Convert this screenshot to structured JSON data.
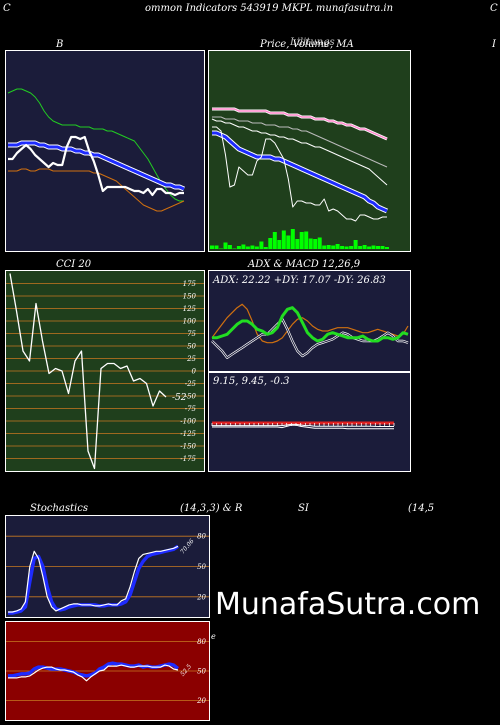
{
  "header": {
    "corner_left": "C",
    "title": "ommon  Indicators 543919 MKPL  munafasutra.in",
    "corner_right": "C"
  },
  "panels": {
    "bollinger": {
      "title": "B"
    },
    "price": {
      "title": "Price,  Volume,  MA",
      "overlap_text": "Lilitungs"
    },
    "right_edge": {
      "title": "I"
    },
    "cci": {
      "title": "CCI 20",
      "last_value": "-52",
      "ticks": [
        "175",
        "150",
        "125",
        "100",
        "75",
        "50",
        "25",
        "0",
        "-25",
        "-50",
        "-75",
        "-100",
        "-125",
        "-150",
        "-175"
      ]
    },
    "adx": {
      "title": "ADX  & MACD 12,26,9",
      "adx_text": "ADX: 22.22  +DY: 17.07 -DY: 26.83",
      "macd_text": "9.15,  9.45,  -0.3"
    },
    "stoch": {
      "title_left": "Stochastics",
      "title_right": "(14,3,3) & R",
      "ticks": [
        "80",
        "50",
        "20"
      ],
      "last_value": "70.06"
    },
    "rsi": {
      "title_mid": "SI",
      "title_right": "(14,5",
      "ticks": [
        "80",
        "50",
        "20"
      ],
      "last_value": "52.5",
      "side_mark": "e"
    }
  },
  "watermark": "MunafaSutra.com",
  "colors": {
    "panel_navy": "#1b1c3a",
    "panel_green": "#1f3f1c",
    "panel_red": "#8b0000",
    "grid_orange": "#c87820",
    "blue": "#1e2bff",
    "green_line": "#22dd22",
    "orange_line": "#d07010",
    "volume_green": "#00ff00",
    "pink": "#ff88cc"
  },
  "chart_data": [
    {
      "type": "line",
      "name": "bollinger",
      "x": [
        1,
        2,
        3,
        4,
        5,
        6,
        7,
        8,
        9,
        10,
        11,
        12,
        13,
        14,
        15,
        16,
        17,
        18,
        19,
        20,
        21,
        22,
        23,
        24,
        25,
        26,
        27,
        28,
        29,
        30,
        31,
        32,
        33,
        34,
        35,
        36,
        37,
        38,
        39,
        40
      ],
      "series": [
        {
          "key": "upper",
          "values": [
            79,
            80,
            81,
            81,
            80,
            79,
            77,
            74,
            70,
            67,
            65,
            64,
            63,
            63,
            63,
            63,
            62,
            62,
            62,
            61,
            61,
            61,
            60,
            60,
            59,
            58,
            57,
            56,
            55,
            52,
            49,
            46,
            42,
            38,
            34,
            31,
            28,
            26,
            25,
            25
          ]
        },
        {
          "key": "middle",
          "values": [
            53,
            53,
            53,
            54,
            54,
            54,
            54,
            53,
            53,
            52,
            52,
            52,
            51,
            51,
            51,
            50,
            50,
            49,
            49,
            48,
            48,
            47,
            46,
            45,
            44,
            43,
            42,
            41,
            40,
            39,
            38,
            37,
            36,
            35,
            34,
            33,
            33,
            32,
            32,
            31
          ]
        },
        {
          "key": "lower",
          "values": [
            40,
            40,
            40,
            41,
            41,
            40,
            40,
            41,
            41,
            41,
            40,
            40,
            40,
            40,
            40,
            40,
            40,
            40,
            40,
            39,
            39,
            38,
            37,
            36,
            35,
            33,
            31,
            29,
            27,
            25,
            23,
            22,
            21,
            20,
            20,
            21,
            22,
            23,
            24,
            25
          ]
        },
        {
          "key": "price",
          "values": [
            46,
            46,
            49,
            51,
            53,
            51,
            48,
            46,
            44,
            42,
            44,
            43,
            43,
            52,
            57,
            57,
            56,
            57,
            50,
            45,
            38,
            30,
            32,
            32,
            32,
            32,
            32,
            31,
            30,
            30,
            29,
            31,
            28,
            31,
            31,
            29,
            29,
            28,
            29,
            29
          ]
        }
      ]
    },
    {
      "type": "line",
      "name": "price_ma",
      "x": [
        1,
        2,
        3,
        4,
        5,
        6,
        7,
        8,
        9,
        10,
        11,
        12,
        13,
        14,
        15,
        16,
        17,
        18,
        19,
        20,
        21,
        22,
        23,
        24,
        25,
        26,
        27,
        28,
        29,
        30,
        31,
        32,
        33,
        34,
        35,
        36,
        37,
        38,
        39,
        40
      ],
      "series": [
        {
          "key": "price",
          "values": [
            62,
            62,
            60,
            48,
            32,
            33,
            42,
            40,
            38,
            38,
            45,
            47,
            56,
            56,
            54,
            50,
            46,
            36,
            22,
            25,
            25,
            24,
            24,
            23,
            23,
            26,
            20,
            21,
            20,
            18,
            16,
            16,
            15,
            18,
            18,
            17,
            16,
            16,
            17,
            17
          ]
        },
        {
          "key": "ma_blue",
          "values": [
            59,
            59,
            58,
            57,
            55,
            53,
            51,
            50,
            49,
            48,
            47,
            47,
            47,
            47,
            46,
            46,
            45,
            44,
            43,
            42,
            41,
            40,
            39,
            38,
            37,
            36,
            35,
            34,
            33,
            32,
            31,
            30,
            29,
            28,
            27,
            25,
            24,
            22,
            21,
            20
          ]
        },
        {
          "key": "ma_white",
          "values": [
            66,
            65,
            65,
            64,
            64,
            63,
            62,
            62,
            61,
            60,
            60,
            59,
            59,
            58,
            58,
            57,
            57,
            56,
            56,
            55,
            54,
            54,
            53,
            52,
            52,
            51,
            50,
            49,
            48,
            47,
            46,
            45,
            44,
            43,
            42,
            41,
            39,
            37,
            35,
            33
          ]
        },
        {
          "key": "ma_gray",
          "values": [
            67,
            67,
            67,
            66,
            66,
            66,
            65,
            65,
            65,
            64,
            64,
            64,
            63,
            63,
            63,
            62,
            62,
            62,
            61,
            61,
            60,
            60,
            59,
            58,
            57,
            56,
            55,
            54,
            53,
            52,
            51,
            50,
            49,
            48,
            47,
            46,
            45,
            44,
            43,
            42
          ]
        },
        {
          "key": "ma_pink",
          "values": [
            71,
            71,
            71,
            71,
            71,
            71,
            70,
            70,
            70,
            70,
            70,
            70,
            70,
            69,
            69,
            69,
            69,
            68,
            68,
            68,
            67,
            67,
            67,
            66,
            66,
            66,
            65,
            65,
            64,
            64,
            63,
            63,
            62,
            61,
            61,
            60,
            59,
            58,
            57,
            56
          ]
        },
        {
          "key": "volume",
          "values": [
            0.7,
            0.7,
            0.1,
            1.3,
            0.8,
            0.1,
            0.6,
            0.9,
            0.5,
            0.7,
            0.5,
            1.5,
            0.4,
            2.2,
            3.4,
            1.8,
            3.7,
            2.7,
            4,
            2,
            3.4,
            3.5,
            2.1,
            2,
            2.3,
            0.7,
            0.8,
            0.7,
            1,
            0.6,
            0.5,
            0.6,
            1.8,
            0.6,
            0.8,
            0.5,
            0.7,
            0.6,
            0.6,
            0.4
          ]
        }
      ]
    },
    {
      "type": "line",
      "name": "cci_20",
      "x": [
        1,
        2,
        3,
        4,
        5,
        6,
        7,
        8,
        9,
        10,
        11,
        12,
        13,
        14,
        15,
        16,
        17,
        18,
        19,
        20,
        21,
        22,
        23,
        24,
        25
      ],
      "series": [
        {
          "key": "cci",
          "values": [
            195,
            120,
            40,
            20,
            135,
            60,
            -5,
            5,
            0,
            -45,
            20,
            40,
            -160,
            -195,
            5,
            15,
            15,
            5,
            10,
            -20,
            -15,
            -25,
            -70,
            -40,
            -52
          ]
        }
      ]
    },
    {
      "type": "line",
      "name": "adx",
      "x": [
        1,
        2,
        3,
        4,
        5,
        6,
        7,
        8,
        9,
        10,
        11,
        12,
        13,
        14,
        15,
        16,
        17,
        18,
        19,
        20,
        21,
        22,
        23,
        24,
        25,
        26,
        27,
        28,
        29,
        30,
        31,
        32,
        33,
        34,
        35,
        36,
        37,
        38,
        39,
        40
      ],
      "series": [
        {
          "key": "adx",
          "values": [
            20,
            20,
            21,
            22,
            25,
            28,
            30,
            30,
            28,
            25,
            24,
            22,
            23,
            26,
            33,
            37,
            38,
            35,
            29,
            23,
            20,
            18,
            19,
            22,
            23,
            22,
            21,
            20,
            20,
            20,
            21,
            19,
            18,
            18,
            20,
            20,
            19,
            20,
            23,
            22
          ]
        },
        {
          "key": "plus_di",
          "values": [
            18,
            15,
            12,
            8,
            10,
            12,
            14,
            16,
            18,
            20,
            22,
            22,
            25,
            28,
            31,
            25,
            18,
            12,
            9,
            11,
            14,
            16,
            17,
            18,
            19,
            21,
            23,
            22,
            20,
            19,
            18,
            18,
            18,
            19,
            21,
            23,
            21,
            18,
            18,
            17
          ]
        },
        {
          "key": "minus_di",
          "values": [
            20,
            24,
            28,
            32,
            35,
            38,
            40,
            37,
            30,
            22,
            18,
            17,
            17,
            18,
            20,
            24,
            28,
            31,
            32,
            30,
            27,
            25,
            24,
            24,
            25,
            26,
            26,
            26,
            25,
            24,
            23,
            23,
            24,
            25,
            24,
            23,
            22,
            21,
            22,
            27
          ]
        }
      ]
    },
    {
      "type": "line",
      "name": "macd",
      "x": [
        1,
        2,
        3,
        4,
        5,
        6,
        7,
        8,
        9,
        10,
        11,
        12,
        13,
        14,
        15,
        16,
        17,
        18,
        19,
        20,
        21,
        22,
        23,
        24,
        25,
        26,
        27,
        28,
        29,
        30,
        31,
        32,
        33,
        34,
        35,
        36,
        37,
        38,
        39,
        40
      ],
      "series": [
        {
          "key": "macd",
          "values": [
            12,
            12,
            12,
            12,
            12,
            12,
            12,
            12,
            12,
            12,
            12,
            12,
            12,
            12,
            12,
            11,
            13,
            15,
            15,
            13,
            12,
            11,
            10,
            10,
            10,
            10,
            10,
            10,
            10,
            9,
            9,
            9,
            9,
            9,
            9,
            9,
            9,
            9,
            9,
            9.15
          ]
        },
        {
          "key": "signal",
          "values": [
            11,
            11,
            11,
            11,
            11,
            11,
            11,
            11,
            11,
            11,
            11,
            11,
            11,
            11,
            11,
            11,
            12,
            13,
            13,
            12,
            11,
            11,
            10,
            10,
            10,
            10,
            10,
            10,
            10,
            10,
            10,
            10,
            10,
            10,
            10,
            9.6,
            9.5,
            9.5,
            9.5,
            9.45
          ]
        }
      ]
    },
    {
      "type": "line",
      "name": "stochastics",
      "x": [
        1,
        2,
        3,
        4,
        5,
        6,
        7,
        8,
        9,
        10,
        11,
        12,
        13,
        14,
        15,
        16,
        17,
        18,
        19,
        20,
        21,
        22,
        23,
        24,
        25,
        26,
        27,
        28,
        29,
        30,
        31,
        32,
        33,
        34,
        35,
        36,
        37,
        38,
        39,
        40
      ],
      "ylim": [
        0,
        100
      ],
      "series": [
        {
          "key": "k",
          "values": [
            5,
            5,
            6,
            8,
            15,
            50,
            65,
            58,
            40,
            20,
            10,
            6,
            8,
            10,
            12,
            13,
            13,
            12,
            12,
            12,
            11,
            11,
            12,
            13,
            12,
            12,
            16,
            18,
            30,
            45,
            58,
            62,
            63,
            64,
            65,
            65,
            66,
            67,
            68,
            70
          ]
        },
        {
          "key": "d",
          "values": [
            4,
            4,
            5,
            6,
            10,
            35,
            58,
            60,
            50,
            30,
            15,
            8,
            7,
            8,
            10,
            11,
            12,
            12,
            12,
            12,
            12,
            11,
            11,
            12,
            12,
            12,
            13,
            15,
            22,
            35,
            48,
            55,
            60,
            62,
            63,
            64,
            65,
            66,
            67,
            70.06
          ]
        }
      ]
    },
    {
      "type": "line",
      "name": "rsi",
      "x": [
        1,
        2,
        3,
        4,
        5,
        6,
        7,
        8,
        9,
        10,
        11,
        12,
        13,
        14,
        15,
        16,
        17,
        18,
        19,
        20,
        21,
        22,
        23,
        24,
        25,
        26,
        27,
        28,
        29,
        30,
        31,
        32,
        33,
        34,
        35,
        36,
        37,
        38,
        39,
        40
      ],
      "ylim": [
        0,
        100
      ],
      "series": [
        {
          "key": "rsi",
          "values": [
            45,
            45,
            46,
            47,
            47,
            48,
            52,
            54,
            54,
            53,
            52,
            52,
            52,
            51,
            50,
            49,
            47,
            46,
            45,
            46,
            48,
            52,
            54,
            57,
            58,
            57,
            57,
            56,
            55,
            55,
            56,
            54,
            55,
            54,
            54,
            55,
            56,
            57,
            56,
            52.5
          ]
        },
        {
          "key": "mfi",
          "values": [
            43,
            43,
            43,
            44,
            44,
            45,
            48,
            51,
            53,
            54,
            54,
            52,
            51,
            51,
            50,
            49,
            46,
            44,
            40,
            44,
            47,
            50,
            51,
            55,
            55,
            55,
            56,
            55,
            54,
            54,
            55,
            55,
            55,
            54,
            54,
            54,
            56,
            55,
            52,
            51
          ]
        }
      ]
    }
  ]
}
